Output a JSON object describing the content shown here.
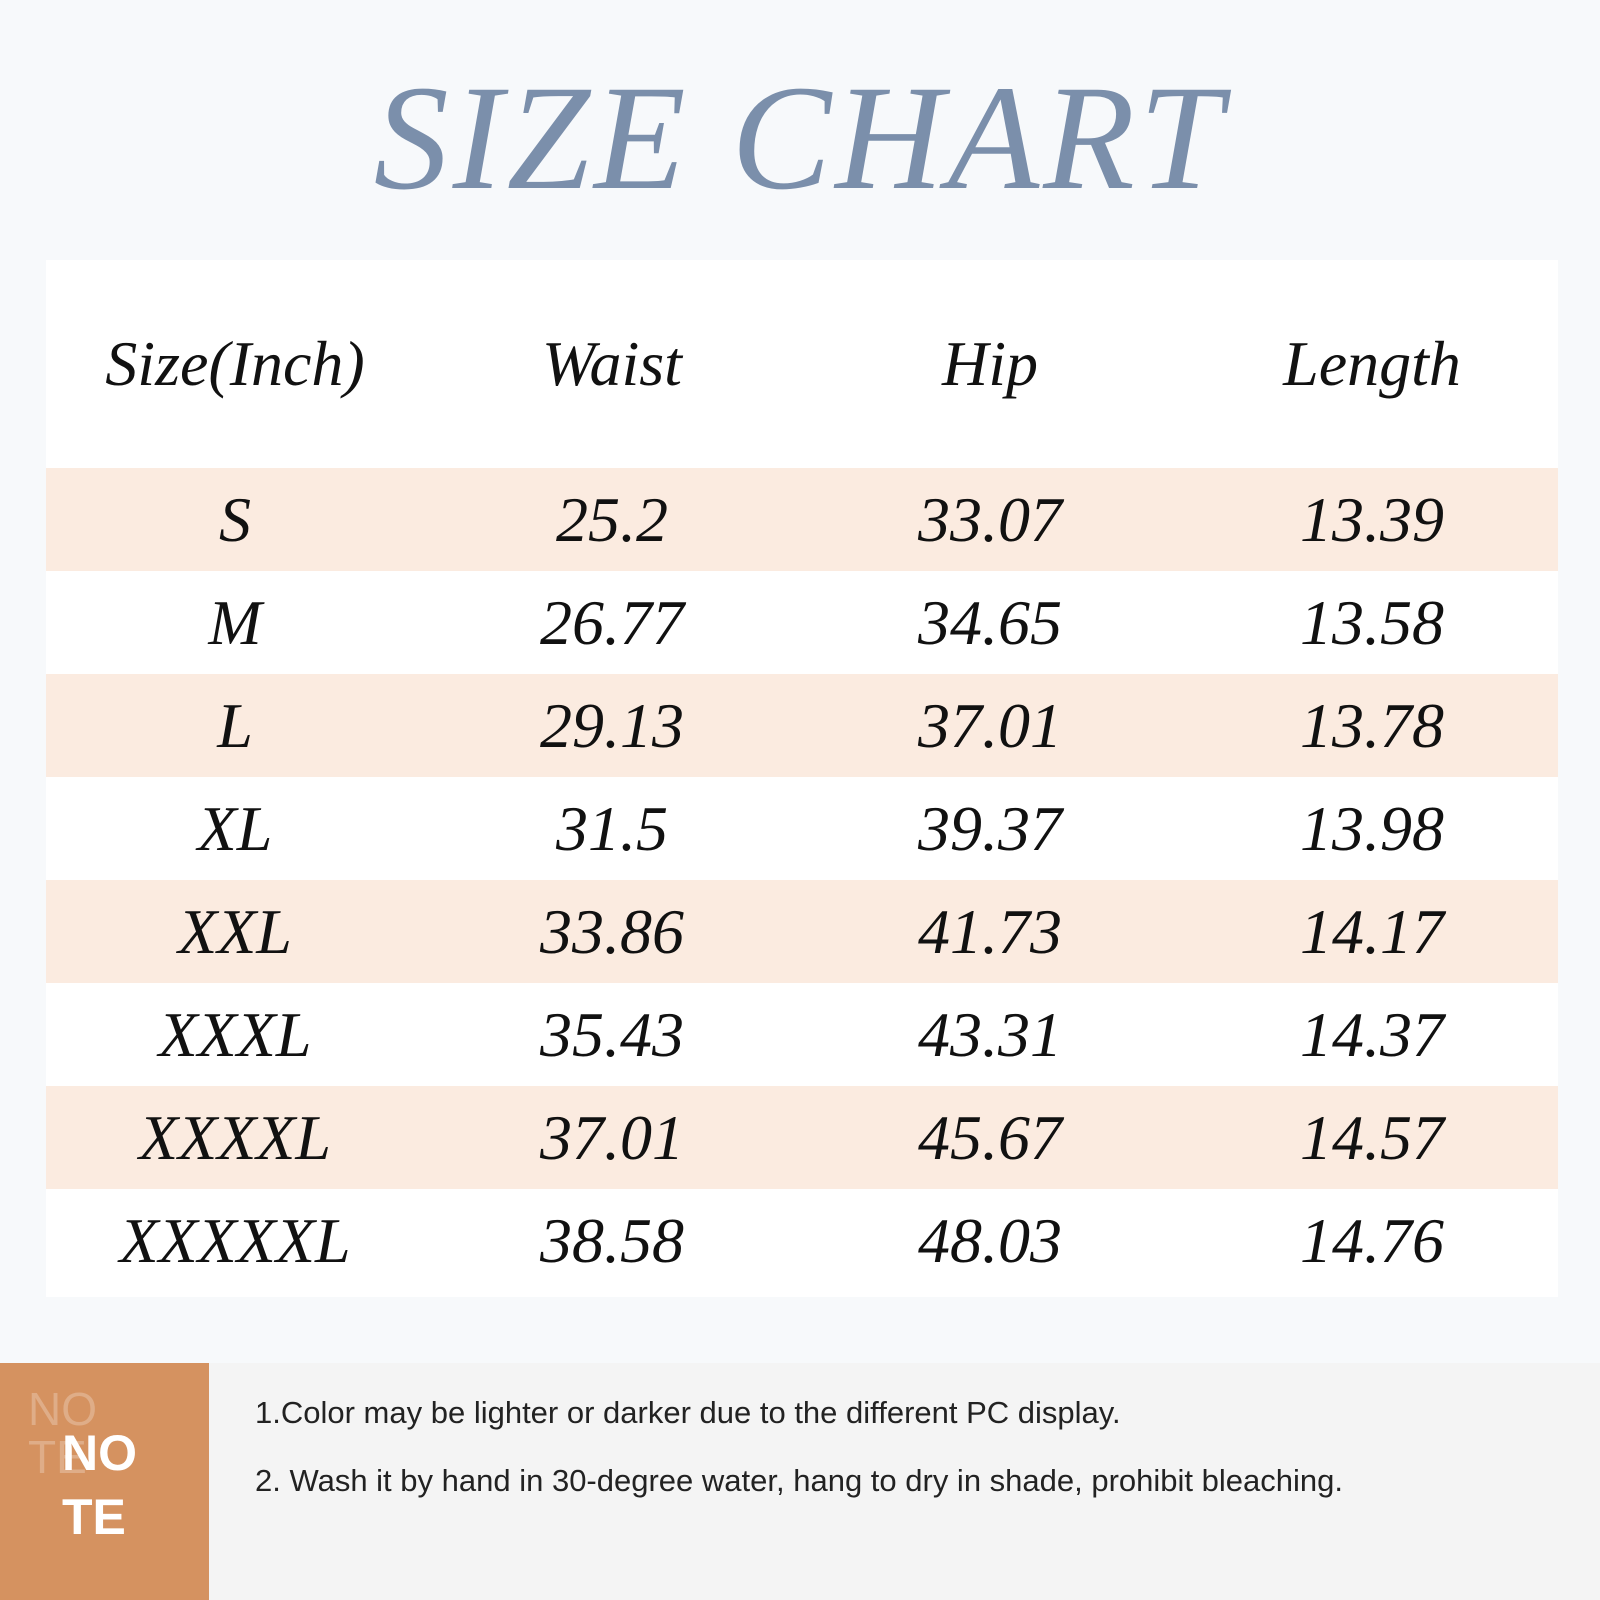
{
  "title": "SIZE CHART",
  "table": {
    "headers": [
      "Size(Inch)",
      "Waist",
      "Hip",
      "Length"
    ],
    "rows": [
      [
        "S",
        "25.2",
        "33.07",
        "13.39"
      ],
      [
        "M",
        "26.77",
        "34.65",
        "13.58"
      ],
      [
        "L",
        "29.13",
        "37.01",
        "13.78"
      ],
      [
        "XL",
        "31.5",
        "39.37",
        "13.98"
      ],
      [
        "XXL",
        "33.86",
        "41.73",
        "14.17"
      ],
      [
        "XXXL",
        "35.43",
        "43.31",
        "14.37"
      ],
      [
        "XXXXL",
        "37.01",
        "45.67",
        "14.57"
      ],
      [
        "XXXXXL",
        "38.58",
        "48.03",
        "14.76"
      ]
    ]
  },
  "note": {
    "badge_line1": "NO",
    "badge_line2": "TE",
    "ghost_line1": "NO",
    "ghost_line2": "TE",
    "lines": [
      "1.Color may be lighter or darker due to the different PC display.",
      "2. Wash it by hand in 30-degree water, hang to dry in shade, prohibit bleaching."
    ]
  },
  "colors": {
    "title": "#7b8fab",
    "row_shade": "#fbebe0",
    "note_badge": "#d59260",
    "background": "#f7f9fb"
  }
}
